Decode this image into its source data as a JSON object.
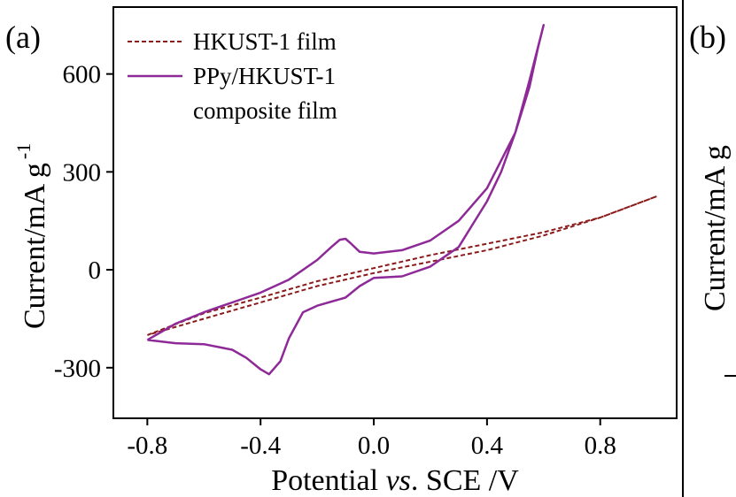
{
  "panels": {
    "left_label": "(a)",
    "right_label": "(b)",
    "right_ylabel_fragment": "Current/mA g"
  },
  "chart_data": {
    "type": "line",
    "title": "",
    "xlabel": "Potential vs. SCE /V",
    "xlabel_parts": [
      "Potential ",
      "vs",
      ". SCE /V"
    ],
    "ylabel": "Current/mA g",
    "ylabel_superscript": "-1",
    "xlim": [
      -0.92,
      1.07
    ],
    "ylim": [
      -455,
      805
    ],
    "xticks": [
      -0.8,
      -0.4,
      0.0,
      0.4,
      0.8
    ],
    "xtick_labels": [
      "-0.8",
      "-0.4",
      "0.0",
      "0.4",
      "0.8"
    ],
    "yticks": [
      -300,
      0,
      300,
      600
    ],
    "ytick_labels": [
      "-300",
      "0",
      "300",
      "600"
    ],
    "grid": false,
    "legend_position": "top-left",
    "series": [
      {
        "name": "HKUST-1 film",
        "color": "#8b1a1a",
        "style": "dashed",
        "x": [
          -0.8,
          -0.6,
          -0.4,
          -0.2,
          0.0,
          0.2,
          0.4,
          0.6,
          0.8,
          1.0,
          0.8,
          0.6,
          0.4,
          0.2,
          0.0,
          -0.2,
          -0.4,
          -0.6,
          -0.8
        ],
        "y": [
          -200,
          -133,
          -85,
          -35,
          5,
          45,
          80,
          115,
          160,
          225,
          160,
          105,
          60,
          25,
          -10,
          -50,
          -100,
          -150,
          -200
        ]
      },
      {
        "name": "PPy/HKUST-1 composite film",
        "legend_lines": [
          "PPy/HKUST-1",
          "composite film"
        ],
        "color": "#8e2a97",
        "style": "solid",
        "x": [
          -0.8,
          -0.7,
          -0.6,
          -0.5,
          -0.4,
          -0.3,
          -0.2,
          -0.15,
          -0.12,
          -0.1,
          -0.08,
          -0.05,
          0.0,
          0.1,
          0.2,
          0.3,
          0.4,
          0.5,
          0.55,
          0.58,
          0.6,
          0.6,
          0.55,
          0.5,
          0.45,
          0.4,
          0.35,
          0.3,
          0.2,
          0.1,
          0.0,
          -0.05,
          -0.1,
          -0.2,
          -0.25,
          -0.3,
          -0.33,
          -0.37,
          -0.4,
          -0.45,
          -0.5,
          -0.6,
          -0.7,
          -0.8
        ],
        "y": [
          -215,
          -165,
          -130,
          -100,
          -70,
          -30,
          30,
          70,
          92,
          95,
          80,
          55,
          50,
          60,
          90,
          150,
          250,
          420,
          560,
          680,
          750,
          750,
          580,
          420,
          300,
          210,
          140,
          70,
          10,
          -20,
          -25,
          -50,
          -85,
          -110,
          -130,
          -210,
          -280,
          -320,
          -305,
          -270,
          -245,
          -228,
          -225,
          -215
        ]
      }
    ]
  }
}
